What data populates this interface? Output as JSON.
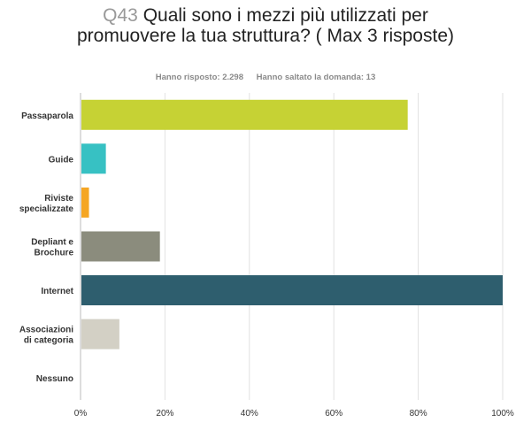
{
  "header": {
    "question_number": "Q43",
    "question_text": "Quali sono i mezzi più utilizzati per promuovere la tua struttura? ( Max 3 risposte)",
    "answered": "Hanno risposto: 2.298",
    "skipped": "Hanno saltato la domanda: 13"
  },
  "chart_data": {
    "type": "bar",
    "orientation": "horizontal",
    "title": "Q43 Quali sono i mezzi più utilizzati per promuovere la tua struttura? ( Max 3 risposte)",
    "categories": [
      [
        "Passaparola"
      ],
      [
        "Guide"
      ],
      [
        "Riviste",
        "specializzate"
      ],
      [
        "Depliant e",
        "Brochure"
      ],
      [
        "Internet"
      ],
      [
        "Associazioni",
        "di categoria"
      ],
      [
        "Nessuno"
      ]
    ],
    "values": [
      77.5,
      6.0,
      2.0,
      18.8,
      100.0,
      9.2,
      0.0
    ],
    "colors": [
      "#c6d234",
      "#37c1c3",
      "#f5a623",
      "#8b8c7d",
      "#2e5e6e",
      "#d3d0c5",
      "#cccccc"
    ],
    "xlim": [
      0,
      100
    ],
    "xticks": [
      "0%",
      "20%",
      "40%",
      "60%",
      "80%",
      "100%"
    ],
    "grid": true,
    "xlabel": "",
    "ylabel": ""
  }
}
